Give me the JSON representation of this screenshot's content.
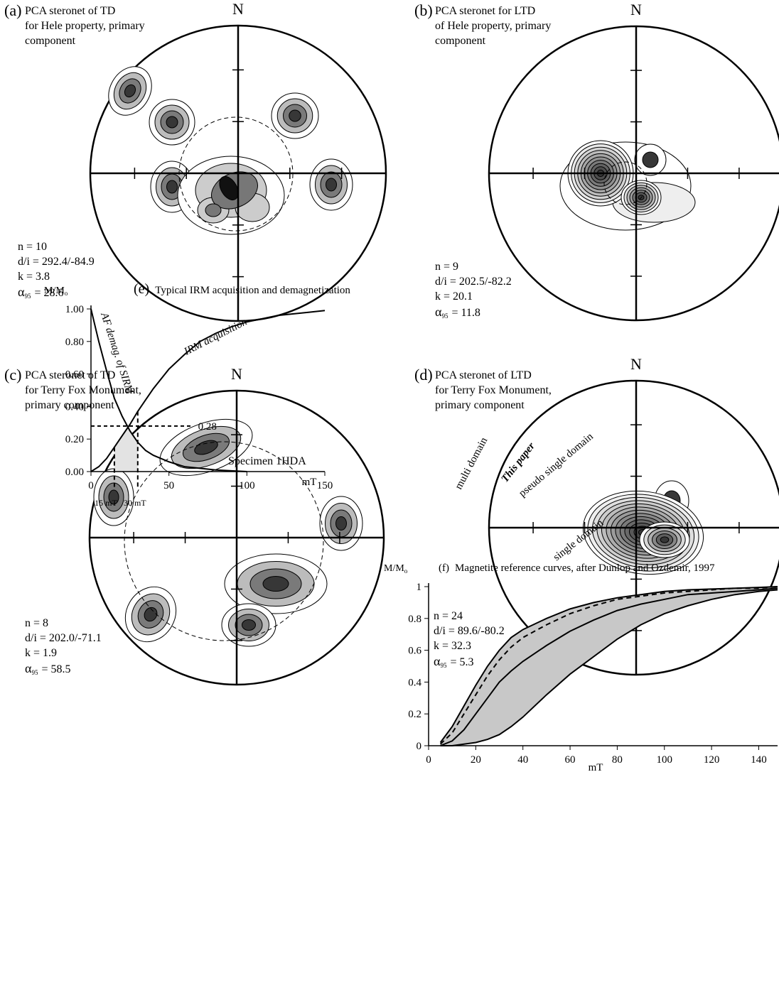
{
  "chart_data": [
    {
      "type": "stereonet",
      "panel": "(a)",
      "title_lines": [
        "PCA steronet of TD",
        "for Hele property, primary",
        "component"
      ],
      "north": "N",
      "stats": [
        "n = 10",
        "d/i = 292.4/-84.9",
        "k = 3.8"
      ],
      "alpha": {
        "symbol": "α",
        "subscript": "95",
        "text": "= 28.6"
      }
    },
    {
      "type": "stereonet",
      "panel": "(b)",
      "title_lines": [
        "PCA steronet for LTD",
        "of Hele property, primary",
        "component"
      ],
      "north": "N",
      "stats": [
        "n = 9",
        "d/i = 202.5/-82.2",
        "k = 20.1"
      ],
      "alpha": {
        "symbol": "α",
        "subscript": "95",
        "text": "= 11.8"
      }
    },
    {
      "type": "stereonet",
      "panel": "(c)",
      "title_lines": [
        "PCA steronet of TD",
        "for Terry Fox Monument,",
        "primary component"
      ],
      "north": "N",
      "stats": [
        "n = 8",
        "d/i = 202.0/-71.1",
        "k = 1.9"
      ],
      "alpha": {
        "symbol": "α",
        "subscript": "95",
        "text": "= 58.5"
      }
    },
    {
      "type": "stereonet",
      "panel": "(d)",
      "title_lines": [
        "PCA steronet of LTD",
        "for Terry Fox Monument,",
        "primary component"
      ],
      "north": "N",
      "stats": [
        "n = 24",
        "d/i = 89.6/-80.2",
        "k = 32.3"
      ],
      "alpha": {
        "symbol": "α",
        "subscript": "95",
        "text": "= 5.3"
      }
    },
    {
      "type": "line",
      "panel": "(e)",
      "title": "Typical IRM acquisition and demagnetization",
      "ylabel": "M/M",
      "ylabel_sub": "o",
      "xlabel": "mT",
      "xlim": [
        0,
        150
      ],
      "ylim": [
        0,
        1
      ],
      "xticks": [
        0,
        50,
        100,
        150
      ],
      "yticks": [
        {
          "value": 0,
          "label": "0.00"
        },
        {
          "value": 0.2,
          "label": "0.20"
        },
        {
          "value": 0.4,
          "label": "0.40"
        },
        {
          "value": 0.6,
          "label": "0.60"
        },
        {
          "value": 0.8,
          "label": "0.80"
        },
        {
          "value": 1,
          "label": "1.00"
        }
      ],
      "series": [
        {
          "name": "IRM acquisition",
          "color": "#000000",
          "x": [
            0,
            5,
            10,
            15,
            20,
            25,
            30,
            35,
            40,
            50,
            60,
            70,
            80,
            90,
            100,
            110,
            120,
            130,
            140,
            150
          ],
          "values": [
            0,
            0.03,
            0.08,
            0.15,
            0.22,
            0.29,
            0.37,
            0.44,
            0.51,
            0.63,
            0.72,
            0.8,
            0.85,
            0.89,
            0.92,
            0.94,
            0.96,
            0.97,
            0.98,
            0.99
          ]
        },
        {
          "name": "AF demag. of SIRM",
          "color": "#000000",
          "x": [
            0,
            5,
            10,
            15,
            20,
            25,
            30,
            35,
            40,
            50,
            60,
            70,
            80,
            90,
            100
          ],
          "values": [
            1,
            0.8,
            0.62,
            0.45,
            0.34,
            0.25,
            0.18,
            0.13,
            0.1,
            0.06,
            0.03,
            0.02,
            0.01,
            0.005,
            0
          ]
        }
      ],
      "hline": {
        "value": 0.28,
        "label": "0.28"
      },
      "vlines": [
        {
          "value": 15,
          "label": "15 mT"
        },
        {
          "value": 30,
          "label": "30 mT"
        }
      ],
      "annotation": "Specimen 1HDA"
    },
    {
      "type": "line",
      "panel": "(f)",
      "title": "Magnetite reference curves, after Dunlop and Ozdemir, 1997",
      "ylabel": "M/M",
      "ylabel_sub": "o",
      "xlabel": "mT",
      "xlim": [
        0,
        148
      ],
      "ylim": [
        0,
        1
      ],
      "xticks": [
        0,
        20,
        40,
        60,
        80,
        100,
        120,
        140
      ],
      "yticks": [
        0,
        0.2,
        0.4,
        0.6,
        0.8,
        1
      ],
      "series": [
        {
          "name": "multi domain",
          "color": "#000000",
          "x": [
            5,
            10,
            15,
            20,
            25,
            30,
            35,
            40,
            50,
            60,
            70,
            80,
            90,
            100,
            110,
            120,
            130,
            140,
            148
          ],
          "values": [
            0.02,
            0.12,
            0.25,
            0.38,
            0.5,
            0.6,
            0.68,
            0.73,
            0.8,
            0.86,
            0.9,
            0.93,
            0.95,
            0.97,
            0.98,
            0.985,
            0.99,
            0.995,
            1
          ]
        },
        {
          "name": "This paper",
          "color": "#000000",
          "dashed": true,
          "x": [
            5,
            10,
            15,
            20,
            25,
            30,
            35,
            40,
            50,
            60,
            70,
            80,
            90,
            100,
            110,
            120,
            130,
            140,
            148
          ],
          "values": [
            0.01,
            0.08,
            0.2,
            0.32,
            0.44,
            0.54,
            0.62,
            0.68,
            0.76,
            0.83,
            0.88,
            0.92,
            0.94,
            0.96,
            0.97,
            0.98,
            0.99,
            0.99,
            1
          ]
        },
        {
          "name": "pseudo single domain",
          "color": "#000000",
          "x": [
            5,
            10,
            15,
            20,
            25,
            30,
            35,
            40,
            50,
            60,
            70,
            80,
            90,
            100,
            110,
            120,
            130,
            140,
            148
          ],
          "values": [
            0,
            0.03,
            0.1,
            0.2,
            0.3,
            0.4,
            0.47,
            0.53,
            0.63,
            0.72,
            0.79,
            0.85,
            0.89,
            0.92,
            0.95,
            0.96,
            0.97,
            0.98,
            0.99
          ]
        },
        {
          "name": "single domain",
          "color": "#000000",
          "x": [
            5,
            10,
            15,
            20,
            25,
            30,
            35,
            40,
            50,
            60,
            70,
            80,
            90,
            100,
            110,
            120,
            130,
            140,
            148
          ],
          "values": [
            0,
            0,
            0.01,
            0.02,
            0.04,
            0.07,
            0.12,
            0.18,
            0.32,
            0.45,
            0.56,
            0.67,
            0.76,
            0.83,
            0.88,
            0.92,
            0.95,
            0.97,
            0.98
          ]
        }
      ]
    }
  ]
}
